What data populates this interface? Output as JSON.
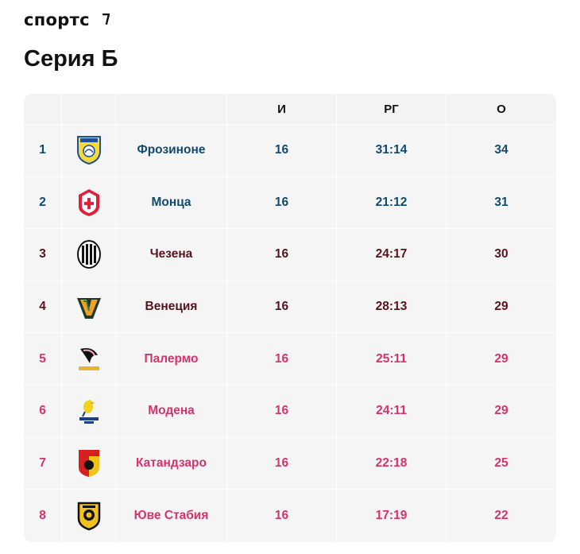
{
  "brand": {
    "name": "спортс"
  },
  "page": {
    "title": "Серия Б"
  },
  "table": {
    "headers": {
      "games": "И",
      "goal_diff": "РГ",
      "points": "О"
    },
    "rows": [
      {
        "pos": "1",
        "team": "Фрозиноне",
        "games": "16",
        "diff": "31:14",
        "points": "34",
        "crest": "frosinone-crest-icon",
        "zone": "cl"
      },
      {
        "pos": "2",
        "team": "Монца",
        "games": "16",
        "diff": "21:12",
        "points": "31",
        "crest": "monza-crest-icon",
        "zone": "cl"
      },
      {
        "pos": "3",
        "team": "Чезена",
        "games": "16",
        "diff": "24:17",
        "points": "30",
        "crest": "cesena-crest-icon",
        "zone": "el"
      },
      {
        "pos": "4",
        "team": "Венеция",
        "games": "16",
        "diff": "28:13",
        "points": "29",
        "crest": "venezia-crest-icon",
        "zone": "el"
      },
      {
        "pos": "5",
        "team": "Палермо",
        "games": "16",
        "diff": "25:11",
        "points": "29",
        "crest": "palermo-crest-icon",
        "zone": "po"
      },
      {
        "pos": "6",
        "team": "Модена",
        "games": "16",
        "diff": "24:11",
        "points": "29",
        "crest": "modena-crest-icon",
        "zone": "po"
      },
      {
        "pos": "7",
        "team": "Катандзаро",
        "games": "16",
        "diff": "22:18",
        "points": "25",
        "crest": "catanzaro-crest-icon",
        "zone": "po"
      },
      {
        "pos": "8",
        "team": "Юве Стабия",
        "games": "16",
        "diff": "17:19",
        "points": "22",
        "crest": "juve-stabia-crest-icon",
        "zone": "po"
      }
    ]
  },
  "colors": {
    "zone_top": "#124a6e",
    "zone_second": "#5a1220",
    "zone_playoff": "#d6336c"
  }
}
